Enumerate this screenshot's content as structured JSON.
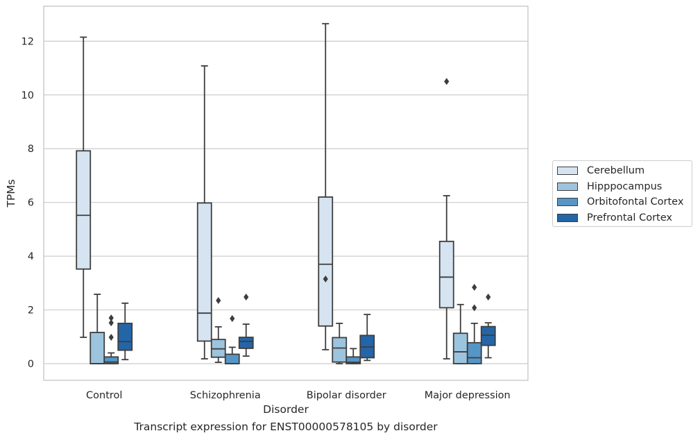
{
  "caption": "Transcript expression for ENST00000578105 by disorder",
  "chart_data": {
    "type": "boxplot",
    "xlabel": "Disorder",
    "ylabel": "TPMs",
    "ylim": [
      -0.62,
      13.3
    ],
    "yticks": [
      0,
      2,
      4,
      6,
      8,
      10,
      12
    ],
    "grid": true,
    "legend_position": "right",
    "categories": [
      "Control",
      "Schizophrenia",
      "Bipolar disorder",
      "Major depression"
    ],
    "series": [
      {
        "name": "Cerebellum",
        "color": "#d6e4f1",
        "boxes": [
          {
            "whislo": 0.98,
            "q1": 3.52,
            "med": 5.52,
            "q3": 7.92,
            "whishi": 12.15,
            "fliers": []
          },
          {
            "whislo": 0.18,
            "q1": 0.84,
            "med": 1.88,
            "q3": 5.98,
            "whishi": 11.08,
            "fliers": []
          },
          {
            "whislo": 0.52,
            "q1": 1.4,
            "med": 3.7,
            "q3": 6.2,
            "whishi": 12.65,
            "fliers": [
              3.15
            ]
          },
          {
            "whislo": 0.18,
            "q1": 2.08,
            "med": 3.22,
            "q3": 4.55,
            "whishi": 6.25,
            "fliers": [
              10.5
            ]
          }
        ]
      },
      {
        "name": "Hipppocampus",
        "color": "#9dc4de",
        "boxes": [
          {
            "whislo": 0.0,
            "q1": 0.0,
            "med": 0.0,
            "q3": 1.16,
            "whishi": 2.58,
            "fliers": []
          },
          {
            "whislo": 0.05,
            "q1": 0.24,
            "med": 0.55,
            "q3": 0.9,
            "whishi": 1.37,
            "fliers": [
              2.35
            ]
          },
          {
            "whislo": 0.0,
            "q1": 0.06,
            "med": 0.58,
            "q3": 0.97,
            "whishi": 1.5,
            "fliers": []
          },
          {
            "whislo": 0.0,
            "q1": 0.0,
            "med": 0.44,
            "q3": 1.13,
            "whishi": 2.2,
            "fliers": []
          }
        ]
      },
      {
        "name": "Orbitofontal Cortex",
        "color": "#5596c6",
        "boxes": [
          {
            "whislo": 0.0,
            "q1": 0.0,
            "med": 0.06,
            "q3": 0.25,
            "whishi": 0.4,
            "fliers": [
              0.98,
              1.52,
              1.7
            ]
          },
          {
            "whislo": 0.0,
            "q1": 0.0,
            "med": 0.0,
            "q3": 0.35,
            "whishi": 0.61,
            "fliers": [
              1.68
            ]
          },
          {
            "whislo": 0.0,
            "q1": 0.0,
            "med": 0.05,
            "q3": 0.25,
            "whishi": 0.56,
            "fliers": []
          },
          {
            "whislo": 0.0,
            "q1": 0.0,
            "med": 0.22,
            "q3": 0.78,
            "whishi": 1.5,
            "fliers": [
              2.08,
              2.84
            ]
          }
        ]
      },
      {
        "name": "Prefrontal Cortex",
        "color": "#2465a8",
        "boxes": [
          {
            "whislo": 0.15,
            "q1": 0.5,
            "med": 0.82,
            "q3": 1.5,
            "whishi": 2.25,
            "fliers": []
          },
          {
            "whislo": 0.28,
            "q1": 0.57,
            "med": 0.83,
            "q3": 0.98,
            "whishi": 1.47,
            "fliers": [
              2.48
            ]
          },
          {
            "whislo": 0.12,
            "q1": 0.22,
            "med": 0.62,
            "q3": 1.05,
            "whishi": 1.83,
            "fliers": []
          },
          {
            "whislo": 0.22,
            "q1": 0.68,
            "med": 1.06,
            "q3": 1.38,
            "whishi": 1.52,
            "fliers": [
              2.48
            ]
          }
        ]
      }
    ]
  }
}
